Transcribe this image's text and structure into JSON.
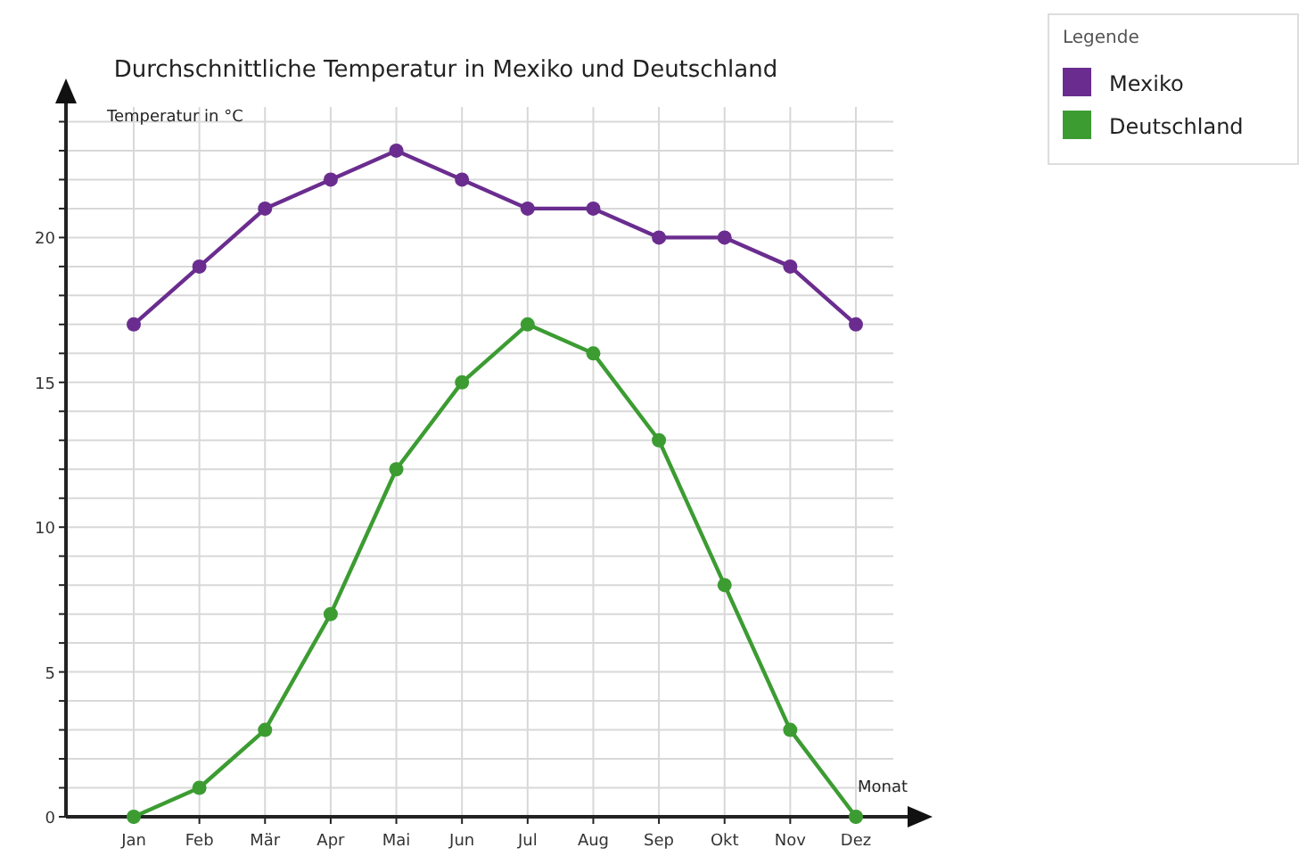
{
  "chart_data": {
    "type": "line",
    "title": "Durchschnittliche Temperatur in Mexiko und Deutschland",
    "xlabel": "Monat",
    "ylabel": "Temperatur in °C",
    "legend_title": "Legende",
    "categories": [
      "Jan",
      "Feb",
      "Mär",
      "Apr",
      "Mai",
      "Jun",
      "Jul",
      "Aug",
      "Sep",
      "Okt",
      "Nov",
      "Dez"
    ],
    "series": [
      {
        "name": "Mexiko",
        "color": "#6a2d8f",
        "values": [
          17,
          19,
          21,
          22,
          23,
          22,
          21,
          21,
          20,
          20,
          19,
          17
        ]
      },
      {
        "name": "Deutschland",
        "color": "#3c9c32",
        "values": [
          0,
          1,
          3,
          7,
          12,
          15,
          17,
          16,
          13,
          8,
          3,
          0
        ]
      }
    ],
    "ylim": [
      0,
      25
    ],
    "yticks": [
      0,
      {
        "value": 1,
        "label": null
      },
      {
        "value": 2,
        "label": null
      },
      {
        "value": 3,
        "label": null
      },
      {
        "value": 4,
        "label": null
      },
      5,
      {
        "value": 6,
        "label": null
      },
      {
        "value": 7,
        "label": null
      },
      {
        "value": 8,
        "label": null
      },
      {
        "value": 9,
        "label": null
      },
      10,
      {
        "value": 11,
        "label": null
      },
      {
        "value": 12,
        "label": null
      },
      {
        "value": 13,
        "label": null
      },
      {
        "value": 14,
        "label": null
      },
      15,
      {
        "value": 16,
        "label": null
      },
      {
        "value": 17,
        "label": null
      },
      {
        "value": 18,
        "label": null
      },
      {
        "value": 19,
        "label": null
      },
      20,
      {
        "value": 21,
        "label": null
      },
      {
        "value": 22,
        "label": null
      },
      {
        "value": 23,
        "label": null
      },
      {
        "value": 24,
        "label": null
      }
    ],
    "grid": true,
    "legend": "top right",
    "marker": "circle",
    "line_style": "solid"
  }
}
